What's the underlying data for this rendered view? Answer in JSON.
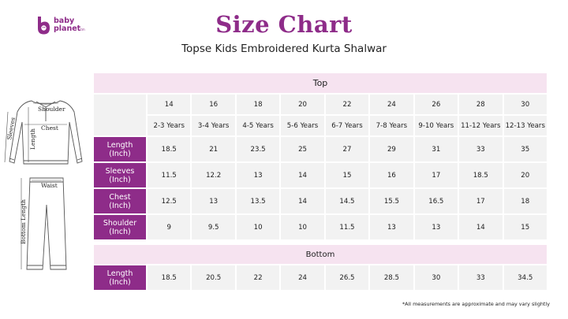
{
  "brand": {
    "line1": "baby",
    "line2": "planet",
    "tm": "tm",
    "color": "#8e2c89"
  },
  "title": "Size Chart",
  "subtitle": "Topse Kids Embroidered Kurta Shalwar",
  "figure_labels": {
    "shoulder": "Shoulder",
    "chest": "Chest",
    "sleeves": "Sleeves",
    "length": "Length",
    "waist": "Waist",
    "bottom_length": "Bottom Length"
  },
  "top": {
    "heading": "Top",
    "sizes": [
      "14",
      "16",
      "18",
      "20",
      "22",
      "24",
      "26",
      "28",
      "30"
    ],
    "ages": [
      "2-3 Years",
      "3-4 Years",
      "4-5 Years",
      "5-6 Years",
      "6-7 Years",
      "7-8 Years",
      "9-10 Years",
      "11-12 Years",
      "12-13 Years"
    ],
    "rows": [
      {
        "label": "Length",
        "unit": "(Inch)",
        "values": [
          "18.5",
          "21",
          "23.5",
          "25",
          "27",
          "29",
          "31",
          "33",
          "35"
        ]
      },
      {
        "label": "Sleeves",
        "unit": "(Inch)",
        "values": [
          "11.5",
          "12.2",
          "13",
          "14",
          "15",
          "16",
          "17",
          "18.5",
          "20"
        ]
      },
      {
        "label": "Chest",
        "unit": "(Inch)",
        "values": [
          "12.5",
          "13",
          "13.5",
          "14",
          "14.5",
          "15.5",
          "16.5",
          "17",
          "18"
        ]
      },
      {
        "label": "Shoulder",
        "unit": "(Inch)",
        "values": [
          "9",
          "9.5",
          "10",
          "10",
          "11.5",
          "13",
          "13",
          "14",
          "15"
        ]
      }
    ]
  },
  "bottom": {
    "heading": "Bottom",
    "rows": [
      {
        "label": "Length",
        "unit": "(Inch)",
        "values": [
          "18.5",
          "20.5",
          "22",
          "24",
          "26.5",
          "28.5",
          "30",
          "33",
          "34.5"
        ]
      }
    ]
  },
  "note": "*All measurements are approximate and may vary slightly"
}
